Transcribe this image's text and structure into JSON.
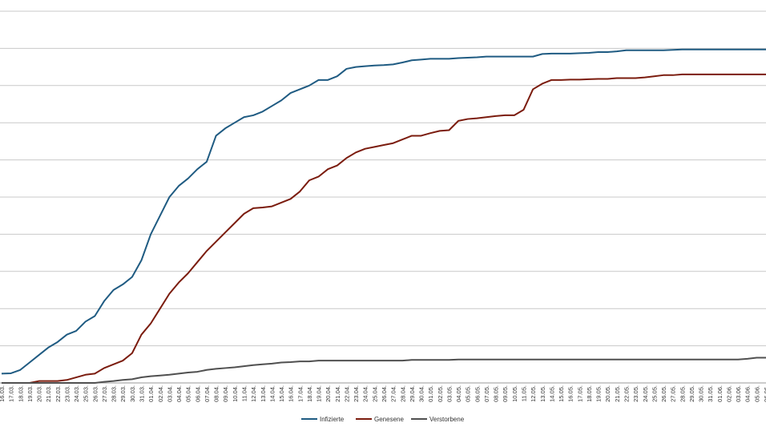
{
  "chart_data": {
    "type": "line",
    "title": "",
    "xlabel": "",
    "ylabel": "",
    "grid": true,
    "legend_position": "bottom",
    "ylim": [
      0,
      10
    ],
    "gridlines": 10,
    "x": [
      "16.03.",
      "17.03.",
      "18.03.",
      "19.03.",
      "20.03.",
      "21.03.",
      "22.03.",
      "23.03.",
      "24.03.",
      "25.03.",
      "26.03.",
      "27.03.",
      "28.03.",
      "29.03.",
      "30.03.",
      "31.03.",
      "01.04.",
      "02.04.",
      "03.04.",
      "04.04.",
      "05.04.",
      "06.04.",
      "07.04.",
      "08.04.",
      "09.04.",
      "10.04.",
      "11.04.",
      "12.04.",
      "13.04.",
      "14.04.",
      "15.04.",
      "16.04.",
      "17.04.",
      "18.04.",
      "19.04.",
      "20.04.",
      "21.04.",
      "22.04.",
      "23.04.",
      "24.04.",
      "25.04.",
      "26.04.",
      "27.04.",
      "28.04.",
      "29.04.",
      "30.04.",
      "01.05.",
      "02.05.",
      "03.05.",
      "04.05.",
      "05.05.",
      "06.05.",
      "07.05.",
      "08.05.",
      "09.05.",
      "10.05.",
      "11.05.",
      "12.05.",
      "13.05.",
      "14.05.",
      "15.05.",
      "16.05.",
      "17.05.",
      "18.05.",
      "19.05.",
      "20.05.",
      "21.05.",
      "22.05.",
      "23.05.",
      "24.05.",
      "25.05.",
      "26.05.",
      "27.05.",
      "28.05.",
      "29.05.",
      "30.05.",
      "31.05.",
      "01.06.",
      "02.06.",
      "03.06.",
      "04.06.",
      "05.06.",
      "06.06."
    ],
    "series": [
      {
        "name": "Infizierte",
        "color": "#1f5b82",
        "values": [
          0.25,
          0.26,
          0.35,
          0.55,
          0.75,
          0.95,
          1.1,
          1.3,
          1.4,
          1.65,
          1.8,
          2.2,
          2.5,
          2.65,
          2.85,
          3.3,
          4.0,
          4.5,
          5.0,
          5.3,
          5.5,
          5.75,
          5.95,
          6.65,
          6.85,
          7.0,
          7.15,
          7.2,
          7.3,
          7.45,
          7.6,
          7.8,
          7.9,
          8.0,
          8.15,
          8.15,
          8.25,
          8.45,
          8.5,
          8.52,
          8.54,
          8.55,
          8.57,
          8.62,
          8.68,
          8.7,
          8.72,
          8.72,
          8.72,
          8.74,
          8.75,
          8.76,
          8.78,
          8.78,
          8.78,
          8.78,
          8.78,
          8.78,
          8.85,
          8.86,
          8.86,
          8.86,
          8.87,
          8.88,
          8.9,
          8.9,
          8.92,
          8.95,
          8.95,
          8.95,
          8.95,
          8.95,
          8.96,
          8.97,
          8.97,
          8.97,
          8.97,
          8.97,
          8.97,
          8.97,
          8.97,
          8.97,
          8.97
        ]
      },
      {
        "name": "Genesene",
        "color": "#7b1c0e",
        "values": [
          0,
          0,
          0,
          0,
          0.05,
          0.05,
          0.05,
          0.08,
          0.15,
          0.22,
          0.25,
          0.4,
          0.5,
          0.6,
          0.8,
          1.3,
          1.6,
          2.0,
          2.4,
          2.7,
          2.95,
          3.25,
          3.55,
          3.8,
          4.05,
          4.3,
          4.55,
          4.7,
          4.72,
          4.75,
          4.85,
          4.95,
          5.15,
          5.45,
          5.55,
          5.75,
          5.85,
          6.05,
          6.2,
          6.3,
          6.35,
          6.4,
          6.45,
          6.55,
          6.65,
          6.65,
          6.72,
          6.78,
          6.8,
          7.05,
          7.1,
          7.12,
          7.15,
          7.18,
          7.2,
          7.2,
          7.35,
          7.9,
          8.05,
          8.15,
          8.15,
          8.16,
          8.16,
          8.17,
          8.18,
          8.18,
          8.2,
          8.2,
          8.2,
          8.22,
          8.25,
          8.28,
          8.28,
          8.3,
          8.3,
          8.3,
          8.3,
          8.3,
          8.3,
          8.3,
          8.3,
          8.3,
          8.3
        ]
      },
      {
        "name": "Verstorbene",
        "color": "#505050",
        "values": [
          0,
          0,
          0,
          0,
          0,
          0,
          0,
          0,
          0,
          0,
          0,
          0.03,
          0.05,
          0.08,
          0.1,
          0.15,
          0.18,
          0.2,
          0.22,
          0.25,
          0.28,
          0.3,
          0.35,
          0.38,
          0.4,
          0.42,
          0.45,
          0.48,
          0.5,
          0.52,
          0.55,
          0.56,
          0.58,
          0.58,
          0.6,
          0.6,
          0.6,
          0.6,
          0.6,
          0.6,
          0.6,
          0.6,
          0.6,
          0.6,
          0.62,
          0.62,
          0.62,
          0.62,
          0.62,
          0.63,
          0.63,
          0.63,
          0.63,
          0.63,
          0.63,
          0.63,
          0.63,
          0.63,
          0.63,
          0.63,
          0.63,
          0.63,
          0.63,
          0.63,
          0.63,
          0.63,
          0.63,
          0.63,
          0.63,
          0.63,
          0.63,
          0.63,
          0.63,
          0.63,
          0.63,
          0.63,
          0.63,
          0.63,
          0.63,
          0.63,
          0.65,
          0.68,
          0.68
        ]
      }
    ]
  }
}
